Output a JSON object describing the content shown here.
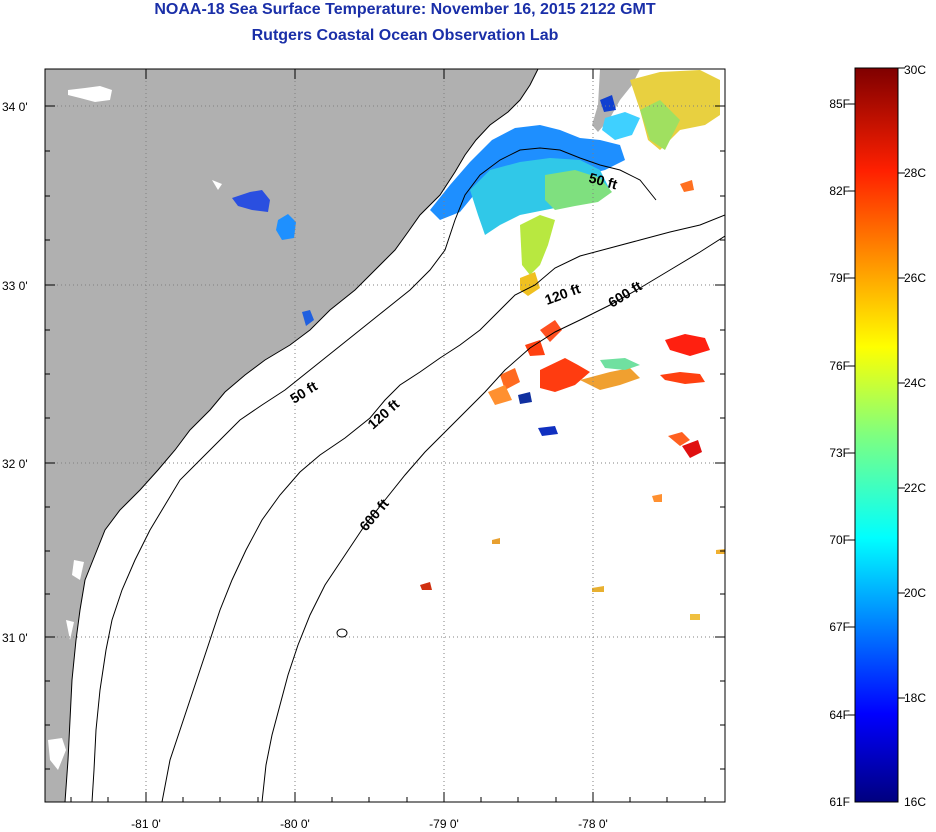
{
  "title": "NOAA-18 Sea Surface Temperature:  November 16, 2015 2122 GMT",
  "subtitle": "Rutgers Coastal Ocean Observation Lab",
  "latitude_labels": [
    "34 0'",
    "33 0'",
    "32 0'",
    "31 0'"
  ],
  "longitude_labels": [
    "-81 0'",
    "-80 0'",
    "-79 0'",
    "-78 0'"
  ],
  "contour_labels": {
    "c50_north": "50 ft",
    "c50_south": "50 ft",
    "c120_north": "120 ft",
    "c120_south": "120 ft",
    "c600_north": "600 ft",
    "c600_south": "600 ft"
  },
  "colorbar": {
    "fahrenheit": [
      "85F",
      "82F",
      "79F",
      "76F",
      "73F",
      "70F",
      "67F",
      "64F",
      "61F"
    ],
    "celsius": [
      "30C",
      "28C",
      "26C",
      "24C",
      "22C",
      "20C",
      "18C",
      "16C"
    ]
  },
  "colors": {
    "title": "#1a2fa8",
    "land": "#b0b0b0",
    "ocean": "#ffffff"
  }
}
